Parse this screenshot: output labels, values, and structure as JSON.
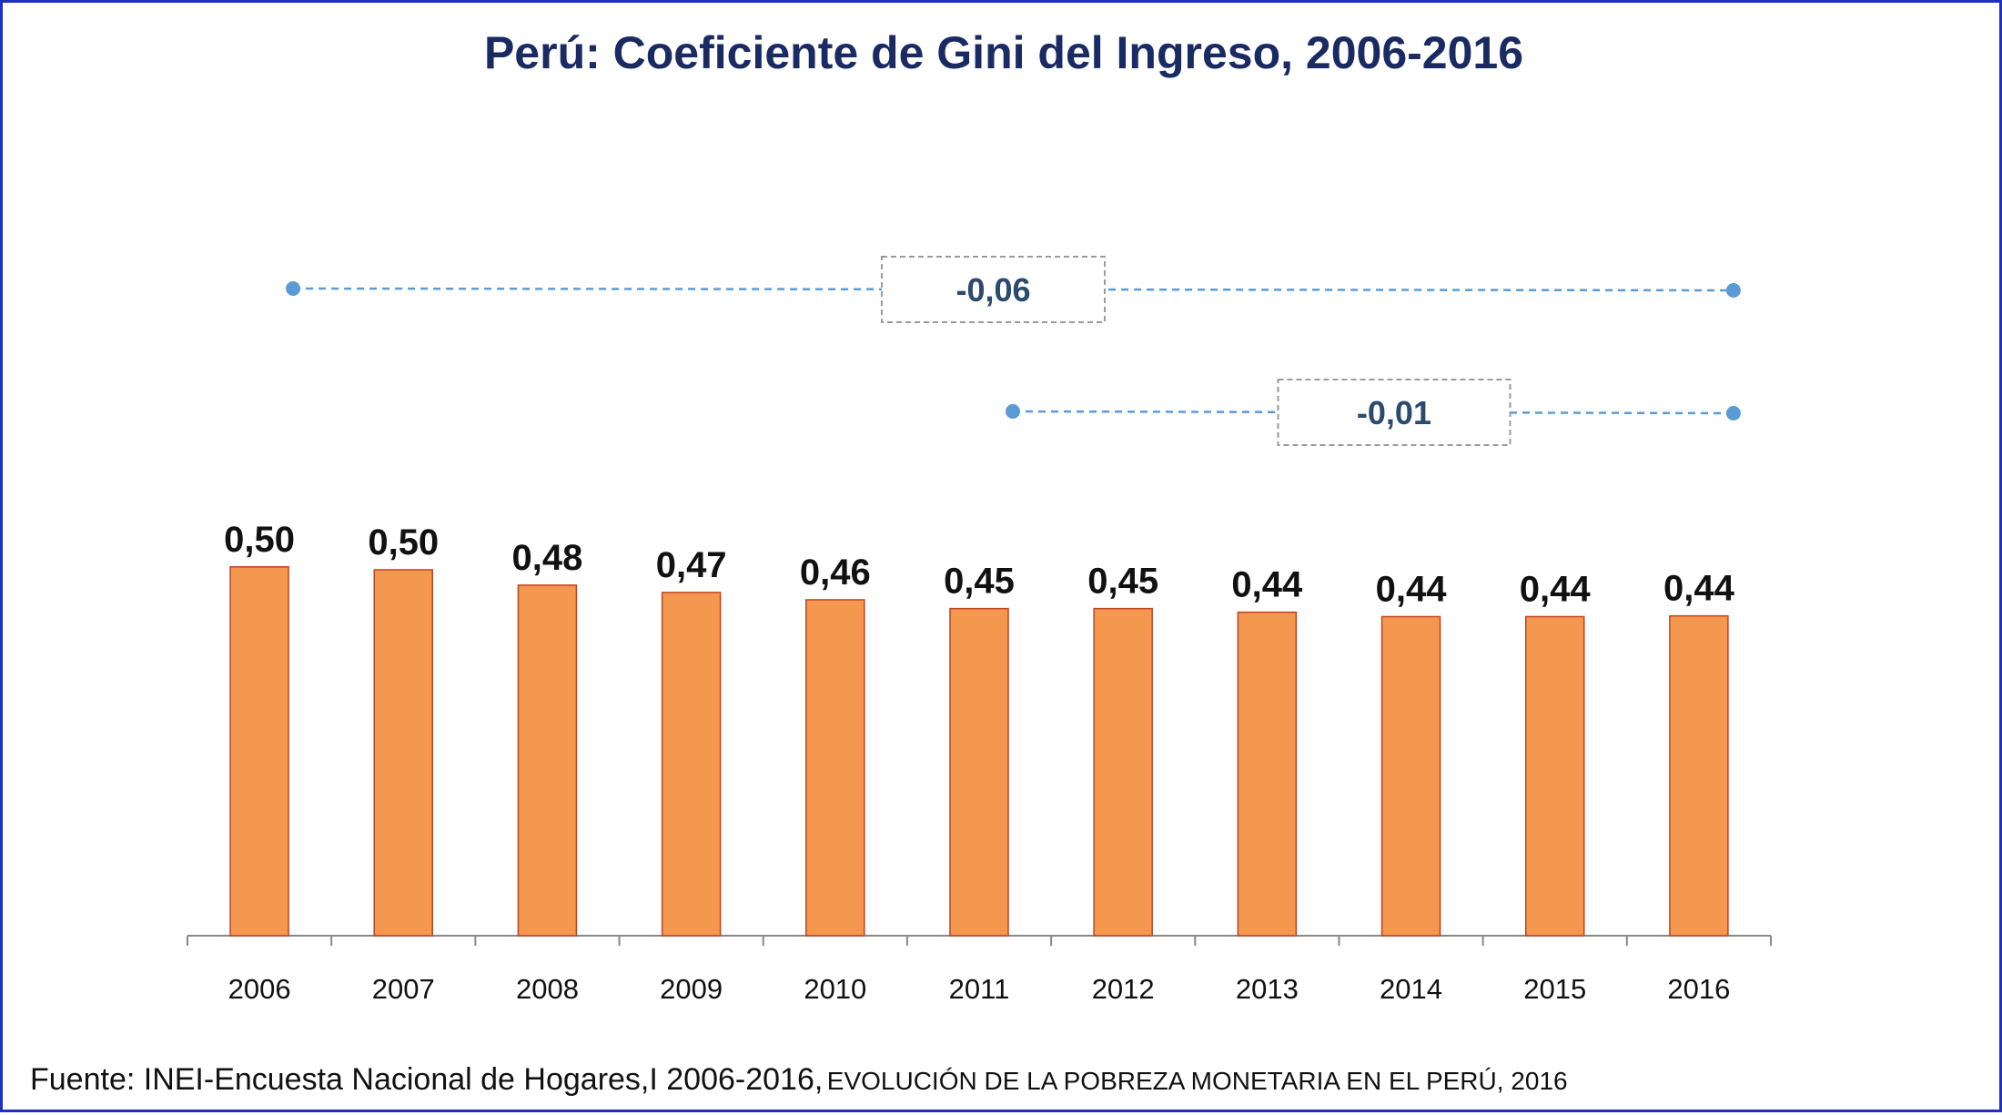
{
  "chart_data": {
    "type": "bar",
    "title": "Perú: Coeficiente de Gini del Ingreso, 2006-2016",
    "categories": [
      "2006",
      "2007",
      "2008",
      "2009",
      "2010",
      "2011",
      "2012",
      "2013",
      "2014",
      "2015",
      "2016"
    ],
    "values": [
      0.504,
      0.5,
      0.479,
      0.469,
      0.459,
      0.447,
      0.447,
      0.442,
      0.436,
      0.436,
      0.437
    ],
    "value_labels": [
      "0,50",
      "0,50",
      "0,48",
      "0,47",
      "0,46",
      "0,45",
      "0,45",
      "0,44",
      "0,44",
      "0,44",
      "0,44"
    ],
    "ylim": [
      0,
      1
    ],
    "xlabel": "",
    "ylabel": "",
    "grid": false,
    "bar_color": "#f4974f",
    "bar_edge_color": "#c0421f",
    "annotations": [
      {
        "from": "2006",
        "to": "2016",
        "label": "-0,06"
      },
      {
        "from": "2011",
        "to": "2016",
        "label": "-0,01"
      }
    ],
    "annotation_color": "#5b9bd5"
  },
  "source": {
    "main": "Fuente: INEI-Encuesta Nacional de Hogares,I 2006-2016,",
    "caps": "EVOLUCIÓN DE LA POBREZA MONETARIA EN EL PERÚ, 2016"
  }
}
